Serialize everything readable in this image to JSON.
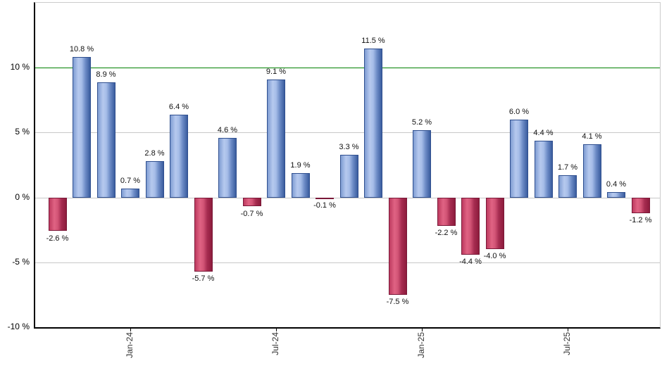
{
  "chart_data": {
    "type": "bar",
    "title": "",
    "xlabel": "",
    "ylabel": "",
    "ylim": [
      -10,
      15
    ],
    "grid": "horizontal-gray-lines",
    "legend": "none",
    "bars": [
      {
        "value": -2.6,
        "label": "-2.6 %"
      },
      {
        "value": 10.8,
        "label": "10.8 %"
      },
      {
        "value": 8.9,
        "label": "8.9 %"
      },
      {
        "value": 0.7,
        "label": "0.7 %"
      },
      {
        "value": 2.8,
        "label": "2.8 %"
      },
      {
        "value": 6.4,
        "label": "6.4 %"
      },
      {
        "value": -5.7,
        "label": "-5.7 %"
      },
      {
        "value": 4.6,
        "label": "4.6 %"
      },
      {
        "value": -0.7,
        "label": "-0.7 %"
      },
      {
        "value": 9.1,
        "label": "9.1 %"
      },
      {
        "value": 1.9,
        "label": "1.9 %"
      },
      {
        "value": -0.1,
        "label": "-0.1 %"
      },
      {
        "value": 3.3,
        "label": "3.3 %"
      },
      {
        "value": 11.5,
        "label": "11.5 %"
      },
      {
        "value": -7.5,
        "label": "-7.5 %"
      },
      {
        "value": 5.2,
        "label": "5.2 %"
      },
      {
        "value": -2.2,
        "label": "-2.2 %"
      },
      {
        "value": -4.4,
        "label": "-4.4 %"
      },
      {
        "value": -4.0,
        "label": "-4.0 %"
      },
      {
        "value": 6.0,
        "label": "6.0 %"
      },
      {
        "value": 4.4,
        "label": "4.4 %"
      },
      {
        "value": 1.7,
        "label": "1.7 %"
      },
      {
        "value": 4.1,
        "label": "4.1 %"
      },
      {
        "value": 0.4,
        "label": "0.4 %"
      },
      {
        "value": -1.2,
        "label": "-1.2 %"
      }
    ],
    "yticks": [
      {
        "value": 10,
        "label": "10 %"
      },
      {
        "value": 5,
        "label": "5 %"
      },
      {
        "value": 0,
        "label": "0 %"
      },
      {
        "value": -5,
        "label": "-5 %"
      },
      {
        "value": -10,
        "label": "-10 %"
      }
    ],
    "xticks": [
      {
        "bar_index": 3,
        "label": "Jan-24"
      },
      {
        "bar_index": 9,
        "label": "Jul-24"
      },
      {
        "bar_index": 15,
        "label": "Jan-25"
      },
      {
        "bar_index": 21,
        "label": "Jul-25"
      }
    ],
    "reference_line": {
      "value": 10,
      "color": "#008000"
    },
    "colors": {
      "positive_bar_main": "#7e9cd2",
      "positive_bar_light": "#b6c9ee",
      "positive_bar_dark": "#3a5c9e",
      "negative_bar_main": "#c03a60",
      "negative_bar_light": "#e06383",
      "negative_bar_dark": "#8d1c3d",
      "gridline": "#c8c8c8",
      "plot_border": "#cccccc",
      "axis_line": "#000000",
      "reference_line": "#008000"
    }
  }
}
